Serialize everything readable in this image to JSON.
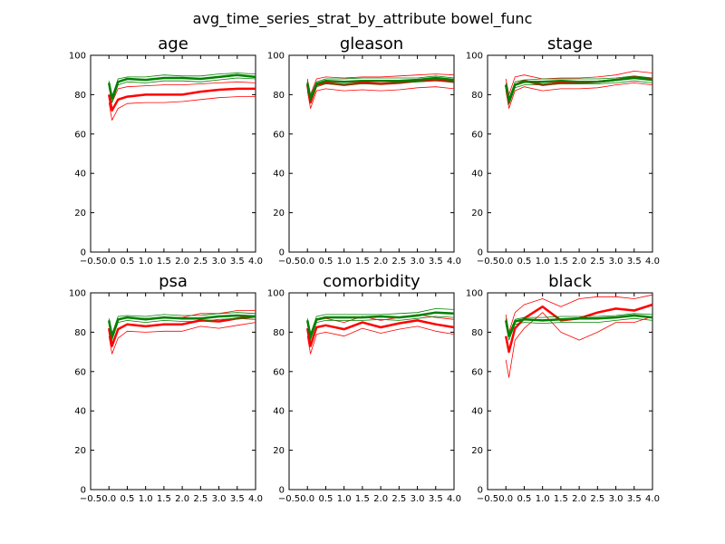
{
  "figure": {
    "suptitle": "avg_time_series_strat_by_attribute bowel_func"
  },
  "colors": {
    "red": "#ff0000",
    "green": "#008000"
  },
  "chart_data": [
    {
      "type": "line",
      "title": "age",
      "xlim": [
        -0.5,
        4.0
      ],
      "ylim": [
        0,
        100
      ],
      "xticks": [
        "−0.5",
        "0.0",
        "0.5",
        "1.0",
        "1.5",
        "2.0",
        "2.5",
        "3.0",
        "3.5",
        "4.0"
      ],
      "yticks": [
        "0",
        "20",
        "40",
        "60",
        "80",
        "100"
      ],
      "x": [
        0.0,
        0.083,
        0.25,
        0.5,
        1.0,
        1.5,
        2.0,
        2.5,
        3.0,
        3.5,
        4.0
      ],
      "series": [
        {
          "color": "red",
          "role": "upper",
          "values": [
            84,
            76,
            83,
            84,
            84.5,
            85,
            85,
            85.5,
            86,
            86.5,
            86
          ]
        },
        {
          "color": "red",
          "role": "mean",
          "values": [
            80,
            72,
            77.5,
            79,
            80,
            80,
            80,
            81.5,
            82.5,
            83,
            83
          ]
        },
        {
          "color": "red",
          "role": "lower",
          "values": [
            76,
            67,
            73,
            75.5,
            76,
            76,
            76.5,
            77.5,
            78.5,
            79,
            79
          ]
        },
        {
          "color": "green",
          "role": "upper",
          "values": [
            87,
            79,
            88,
            89,
            89,
            90,
            89.5,
            89.5,
            90.5,
            91,
            90.5
          ]
        },
        {
          "color": "green",
          "role": "mean",
          "values": [
            86,
            78,
            86.5,
            88,
            87.5,
            88.5,
            88.5,
            88,
            89,
            90,
            89
          ]
        },
        {
          "color": "green",
          "role": "lower",
          "values": [
            84,
            76,
            85,
            86.5,
            86,
            87,
            87,
            86.5,
            87.5,
            88.5,
            88
          ]
        }
      ]
    },
    {
      "type": "line",
      "title": "gleason",
      "xlim": [
        -0.5,
        4.0
      ],
      "ylim": [
        0,
        100
      ],
      "xticks": [
        "−0.5",
        "0.0",
        "0.5",
        "1.0",
        "1.5",
        "2.0",
        "2.5",
        "3.0",
        "3.5",
        "4.0"
      ],
      "yticks": [
        "0",
        "20",
        "40",
        "60",
        "80",
        "100"
      ],
      "x": [
        0.0,
        0.083,
        0.25,
        0.5,
        1.0,
        1.5,
        2.0,
        2.5,
        3.0,
        3.5,
        4.0
      ],
      "series": [
        {
          "color": "red",
          "role": "upper",
          "values": [
            88,
            80,
            88,
            89,
            88.5,
            89,
            89,
            89.5,
            90,
            90.5,
            90
          ]
        },
        {
          "color": "red",
          "role": "mean",
          "values": [
            85,
            76,
            85,
            86,
            85,
            86,
            85.5,
            86,
            87,
            87.5,
            86.5
          ]
        },
        {
          "color": "red",
          "role": "lower",
          "values": [
            82,
            73,
            82,
            83,
            82,
            82.5,
            82,
            82.5,
            83.5,
            84,
            83
          ]
        },
        {
          "color": "green",
          "role": "upper",
          "values": [
            87,
            79,
            86.5,
            88,
            88,
            88.5,
            88.5,
            88.5,
            88.5,
            89.5,
            88.5
          ]
        },
        {
          "color": "green",
          "role": "mean",
          "values": [
            86,
            78,
            85.5,
            87,
            86.5,
            87,
            87,
            87,
            87.5,
            88.5,
            87.5
          ]
        },
        {
          "color": "green",
          "role": "lower",
          "values": [
            85,
            77,
            84,
            85.5,
            85,
            85.5,
            85.5,
            86,
            86.5,
            87,
            86.5
          ]
        }
      ]
    },
    {
      "type": "line",
      "title": "stage",
      "xlim": [
        -0.5,
        4.0
      ],
      "ylim": [
        0,
        100
      ],
      "xticks": [
        "−0.5",
        "0.0",
        "0.5",
        "1.0",
        "1.5",
        "2.0",
        "2.5",
        "3.0",
        "3.5",
        "4.0"
      ],
      "yticks": [
        "0",
        "20",
        "40",
        "60",
        "80",
        "100"
      ],
      "x": [
        0.0,
        0.083,
        0.25,
        0.5,
        1.0,
        1.5,
        2.0,
        2.5,
        3.0,
        3.5,
        4.0
      ],
      "series": [
        {
          "color": "red",
          "role": "upper",
          "values": [
            88,
            80,
            89,
            90,
            88,
            88.5,
            88.5,
            89,
            90,
            92,
            91
          ]
        },
        {
          "color": "red",
          "role": "mean",
          "values": [
            85,
            76,
            85,
            87,
            85,
            86,
            86,
            86.5,
            87.5,
            89,
            88
          ]
        },
        {
          "color": "red",
          "role": "lower",
          "values": [
            82,
            73,
            82,
            84,
            82,
            83,
            83,
            83.5,
            85,
            86,
            85
          ]
        },
        {
          "color": "green",
          "role": "upper",
          "values": [
            86,
            78,
            86.5,
            87.5,
            88,
            88,
            88,
            88,
            88.5,
            89.5,
            88.5
          ]
        },
        {
          "color": "green",
          "role": "mean",
          "values": [
            85,
            77,
            85,
            86.5,
            86.5,
            87,
            86.5,
            86.5,
            87.5,
            88.5,
            87.5
          ]
        },
        {
          "color": "green",
          "role": "lower",
          "values": [
            84,
            75,
            83.5,
            85,
            85,
            85.5,
            85.5,
            85.5,
            86,
            87,
            86
          ]
        }
      ]
    },
    {
      "type": "line",
      "title": "psa",
      "xlim": [
        -0.5,
        4.0
      ],
      "ylim": [
        0,
        100
      ],
      "xticks": [
        "−0.5",
        "0.0",
        "0.5",
        "1.0",
        "1.5",
        "2.0",
        "2.5",
        "3.0",
        "3.5",
        "4.0"
      ],
      "yticks": [
        "0",
        "20",
        "40",
        "60",
        "80",
        "100"
      ],
      "x": [
        0.0,
        0.083,
        0.25,
        0.5,
        1.0,
        1.5,
        2.0,
        2.5,
        3.0,
        3.5,
        4.0
      ],
      "series": [
        {
          "color": "red",
          "role": "upper",
          "values": [
            86,
            77,
            86,
            87.5,
            87,
            87.5,
            87.5,
            89.5,
            89.5,
            91,
            91
          ]
        },
        {
          "color": "red",
          "role": "mean",
          "values": [
            82,
            73,
            81.5,
            84,
            83,
            84,
            84,
            86,
            85.5,
            87,
            88
          ]
        },
        {
          "color": "red",
          "role": "lower",
          "values": [
            78,
            69,
            77,
            80.5,
            80,
            80.5,
            80.5,
            83,
            82,
            83.5,
            85
          ]
        },
        {
          "color": "green",
          "role": "upper",
          "values": [
            87,
            79,
            88,
            88.5,
            88,
            89,
            88.5,
            88.5,
            89.5,
            90,
            89.5
          ]
        },
        {
          "color": "green",
          "role": "mean",
          "values": [
            86,
            78,
            86.5,
            87.5,
            86.5,
            87.5,
            87,
            87,
            88,
            88.5,
            88
          ]
        },
        {
          "color": "green",
          "role": "lower",
          "values": [
            84,
            76,
            85,
            86,
            85,
            86,
            85.5,
            85.5,
            86.5,
            87,
            86.5
          ]
        }
      ]
    },
    {
      "type": "line",
      "title": "comorbidity",
      "xlim": [
        -0.5,
        4.0
      ],
      "ylim": [
        0,
        100
      ],
      "xticks": [
        "−0.5",
        "0.0",
        "0.5",
        "1.0",
        "1.5",
        "2.0",
        "2.5",
        "3.0",
        "3.5",
        "4.0"
      ],
      "yticks": [
        "0",
        "20",
        "40",
        "60",
        "80",
        "100"
      ],
      "x": [
        0.0,
        0.083,
        0.25,
        0.5,
        1.0,
        1.5,
        2.0,
        2.5,
        3.0,
        3.5,
        4.0
      ],
      "series": [
        {
          "color": "red",
          "role": "upper",
          "values": [
            86,
            77,
            86,
            87,
            85,
            88,
            86,
            87.5,
            89,
            87.5,
            86.5
          ]
        },
        {
          "color": "red",
          "role": "mean",
          "values": [
            82,
            73,
            82.5,
            83.5,
            81.5,
            85,
            82.5,
            84.5,
            86,
            84,
            82.5
          ]
        },
        {
          "color": "red",
          "role": "lower",
          "values": [
            78,
            69,
            79,
            80,
            78,
            82,
            79.5,
            81.5,
            83,
            80.5,
            79
          ]
        },
        {
          "color": "green",
          "role": "upper",
          "values": [
            87,
            79,
            88,
            89,
            89,
            89,
            89,
            89.5,
            90,
            92,
            91.5
          ]
        },
        {
          "color": "green",
          "role": "mean",
          "values": [
            86,
            78,
            86.5,
            87.5,
            87.5,
            87.5,
            88,
            87.5,
            88.5,
            90,
            89.5
          ]
        },
        {
          "color": "green",
          "role": "lower",
          "values": [
            84,
            76,
            85,
            86,
            86,
            86,
            86.5,
            86,
            87,
            88,
            87.5
          ]
        }
      ]
    },
    {
      "type": "line",
      "title": "black",
      "xlim": [
        -0.5,
        4.0
      ],
      "ylim": [
        0,
        100
      ],
      "xticks": [
        "−0.5",
        "0.0",
        "0.5",
        "1.0",
        "1.5",
        "2.0",
        "2.5",
        "3.0",
        "3.5",
        "4.0"
      ],
      "yticks": [
        "0",
        "20",
        "40",
        "60",
        "80",
        "100"
      ],
      "x": [
        0.0,
        0.083,
        0.25,
        0.5,
        1.0,
        1.5,
        2.0,
        2.5,
        3.0,
        3.5,
        4.0
      ],
      "series": [
        {
          "color": "red",
          "role": "upper",
          "values": [
            89,
            80,
            90,
            94,
            97,
            93,
            97,
            98,
            98,
            97,
            99
          ]
        },
        {
          "color": "red",
          "role": "mean",
          "values": [
            78,
            70,
            82,
            87,
            93,
            86,
            87,
            90,
            92,
            91,
            94
          ]
        },
        {
          "color": "red",
          "role": "lower",
          "values": [
            66,
            57,
            76,
            82,
            90,
            80,
            76,
            80,
            85,
            85,
            88
          ]
        },
        {
          "color": "green",
          "role": "upper",
          "values": [
            87,
            79,
            86.5,
            87.5,
            87.5,
            88,
            88,
            88,
            88.5,
            89.5,
            89
          ]
        },
        {
          "color": "green",
          "role": "mean",
          "values": [
            86,
            78,
            85.5,
            86.5,
            86,
            86.5,
            87,
            87,
            87.5,
            88.5,
            87.5
          ]
        },
        {
          "color": "green",
          "role": "lower",
          "values": [
            84,
            76,
            84,
            85,
            84.5,
            85,
            85,
            85,
            86,
            87,
            86
          ]
        }
      ]
    }
  ]
}
